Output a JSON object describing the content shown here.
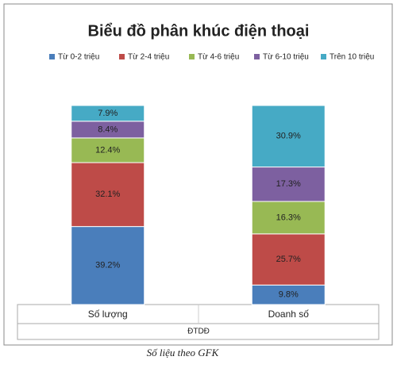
{
  "chart_data": {
    "type": "bar",
    "stacked": true,
    "percent": true,
    "title": "Biểu đồ phân khúc điện thoại",
    "categories": [
      "Số lượng",
      "Doanh số"
    ],
    "xlabel": "ĐTDĐ",
    "caption": "Số liệu theo GFK",
    "series": [
      {
        "name": "Từ 0-2 triệu",
        "color": "#4a7ebb",
        "values": [
          39.2,
          9.8
        ],
        "value_labels": [
          "39.2%",
          "9.8%"
        ]
      },
      {
        "name": "Từ 2-4 triệu",
        "color": "#be4b48",
        "values": [
          32.1,
          25.7
        ],
        "value_labels": [
          "32.1%",
          "25.7%"
        ]
      },
      {
        "name": "Từ 4-6 triệu",
        "color": "#98b954",
        "values": [
          12.4,
          16.3
        ],
        "value_labels": [
          "12.4%",
          "16.3%"
        ]
      },
      {
        "name": "Từ 6-10 triệu",
        "color": "#7d60a0",
        "values": [
          8.4,
          17.3
        ],
        "value_labels": [
          "8.4%",
          "17.3%"
        ]
      },
      {
        "name": "Trên 10 triệu",
        "color": "#46aac5",
        "values": [
          7.9,
          30.9
        ],
        "value_labels": [
          "7.9%",
          "30.9%"
        ]
      }
    ]
  }
}
